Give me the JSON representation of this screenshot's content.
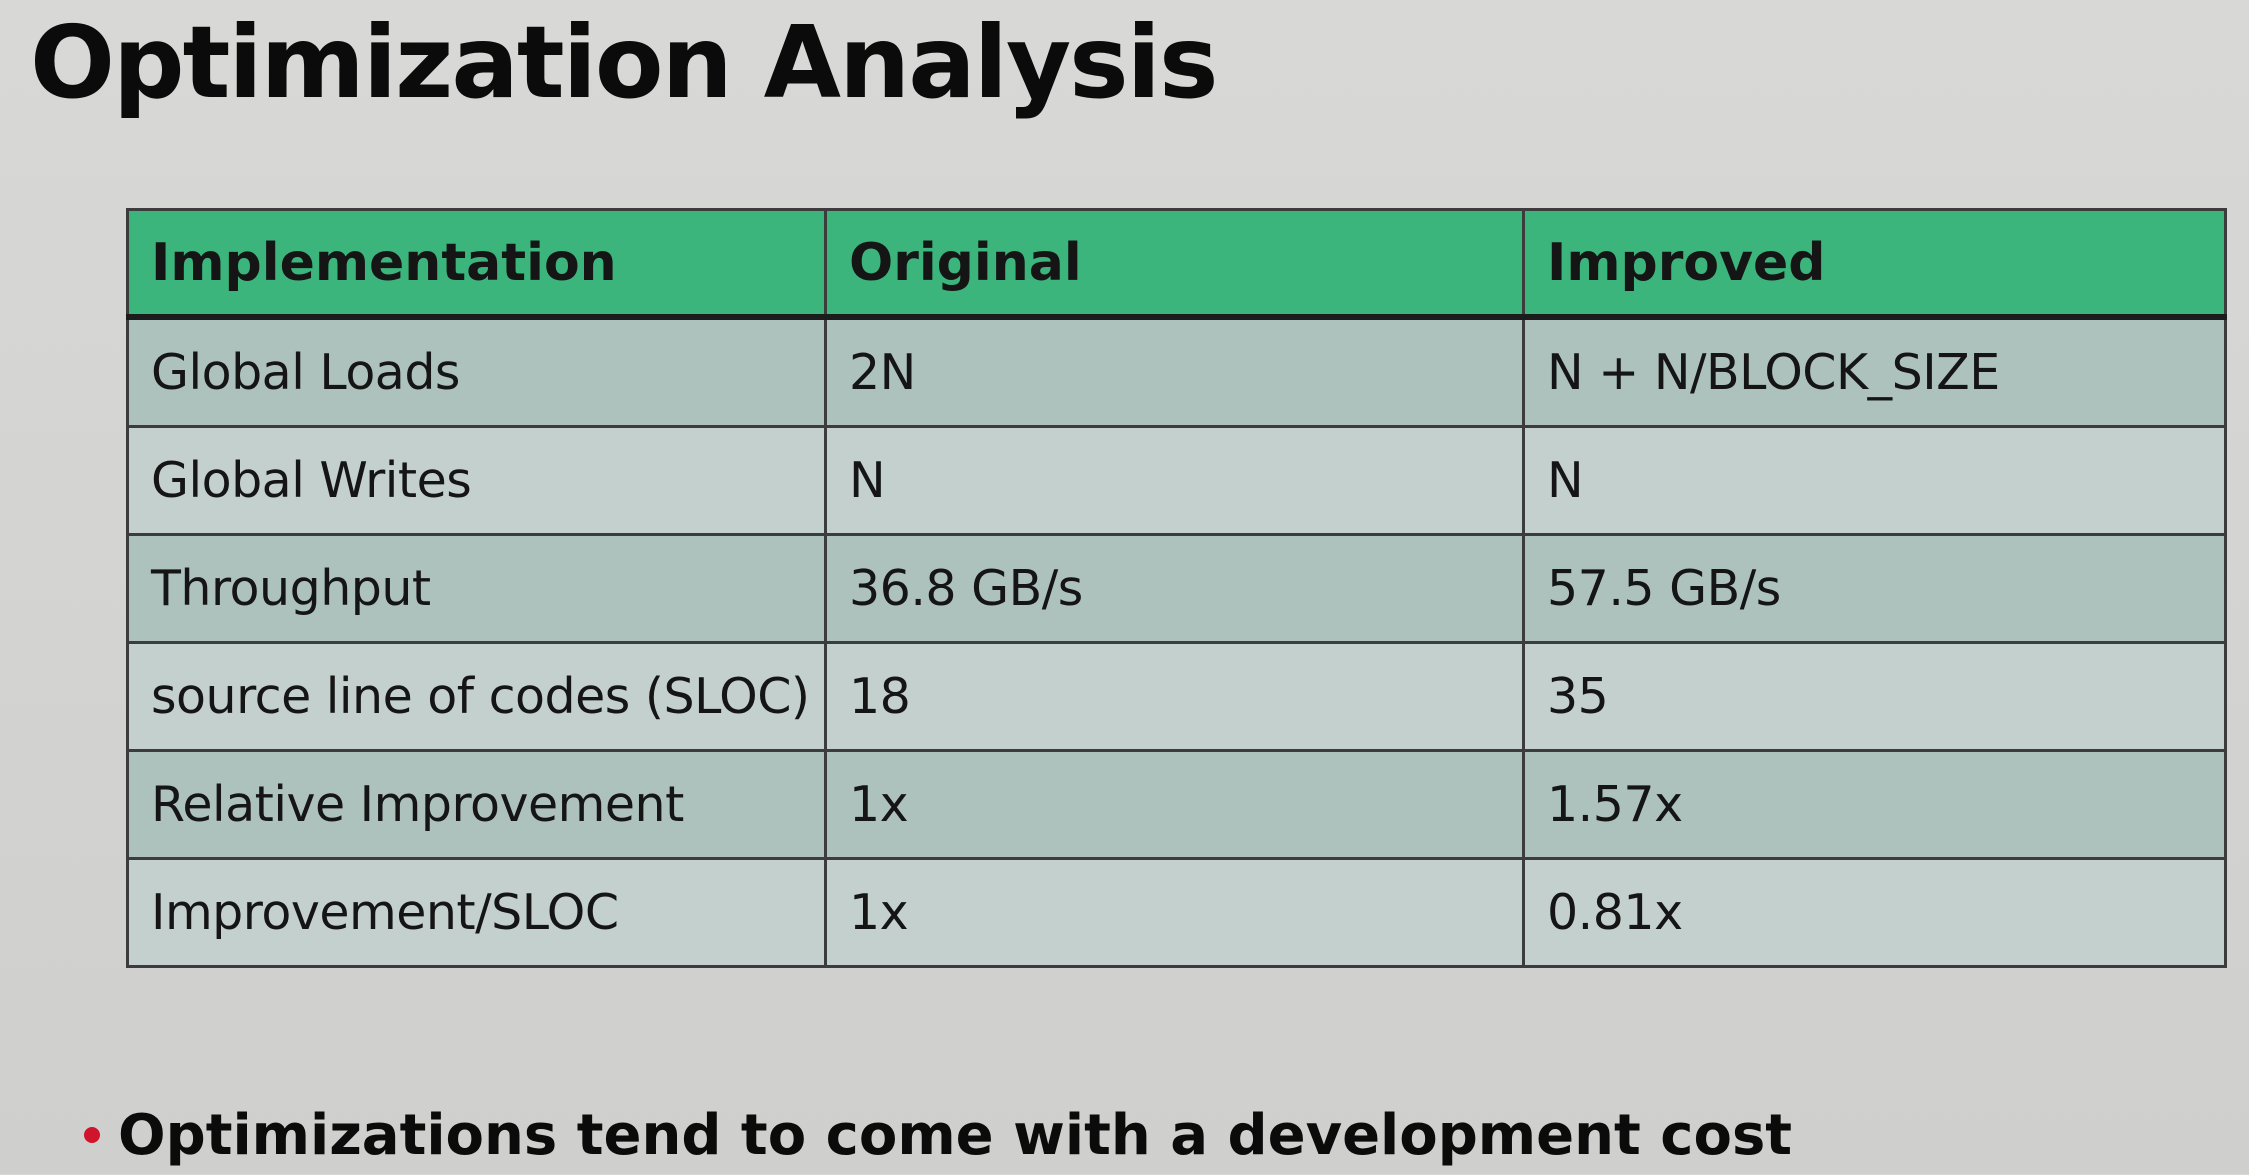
{
  "slide": {
    "title": "Optimization Analysis"
  },
  "table": {
    "headers": [
      "Implementation",
      "Original",
      "Improved"
    ],
    "rows": [
      [
        "Global Loads",
        "2N",
        "N + N/BLOCK_SIZE"
      ],
      [
        "Global Writes",
        "N",
        "N"
      ],
      [
        "Throughput",
        "36.8 GB/s",
        "57.5 GB/s"
      ],
      [
        "source line of codes (SLOC)",
        "18",
        "35"
      ],
      [
        "Relative Improvement",
        "1x",
        "1.57x"
      ],
      [
        "Improvement/SLOC",
        "1x",
        "0.81x"
      ]
    ]
  },
  "bullets": [
    "Optimizations tend to come with a development cost"
  ],
  "colors": {
    "header_bg": "#3cb57d",
    "row_dark": "#aec2bd",
    "row_light": "#c4d0cd",
    "bullet": "#d0142c"
  }
}
